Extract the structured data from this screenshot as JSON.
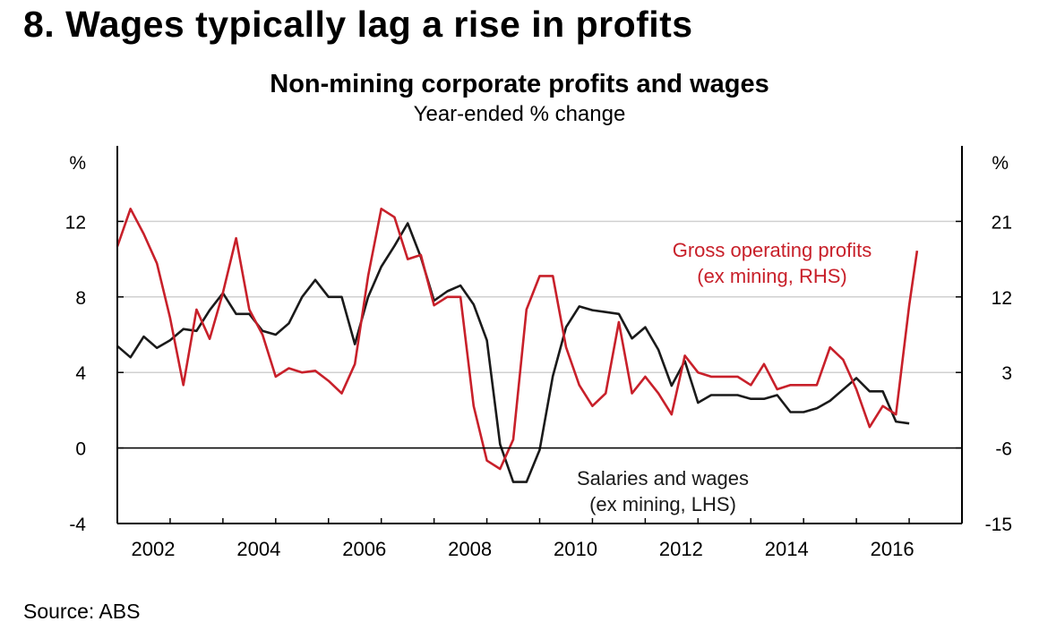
{
  "heading": "8. Wages typically lag a rise in profits",
  "source": "Source: ABS",
  "colors": {
    "wages": "#1a1a1a",
    "profits": "#c8202a",
    "grid": "#d0d0d0",
    "axis": "#000000"
  },
  "chart_data": {
    "type": "line",
    "title": "Non-mining corporate profits and wages",
    "subtitle": "Year-ended % change",
    "left_axis": {
      "unit": "%",
      "ylim": [
        -4,
        16
      ],
      "ticks": [
        -4,
        0,
        4,
        8,
        12
      ]
    },
    "right_axis": {
      "unit": "%",
      "ylim": [
        -15,
        30
      ],
      "ticks": [
        -15,
        -6,
        3,
        12,
        21
      ]
    },
    "x_axis": {
      "xlim": [
        2002,
        2018
      ],
      "ticks": [
        2002,
        2004,
        2006,
        2008,
        2010,
        2012,
        2014,
        2016
      ]
    },
    "grid": "horizontal",
    "series": [
      {
        "name": "Salaries and wages",
        "label_lines": [
          "Salaries and wages",
          "(ex mining, LHS)"
        ],
        "axis": "left",
        "x": [
          2002.0,
          2002.25,
          2002.5,
          2002.75,
          2003.0,
          2003.25,
          2003.5,
          2003.75,
          2004.0,
          2004.25,
          2004.5,
          2004.75,
          2005.0,
          2005.25,
          2005.5,
          2005.75,
          2006.0,
          2006.25,
          2006.5,
          2006.75,
          2007.0,
          2007.25,
          2007.5,
          2007.75,
          2008.0,
          2008.25,
          2008.5,
          2008.75,
          2009.0,
          2009.25,
          2009.5,
          2009.75,
          2010.0,
          2010.25,
          2010.5,
          2010.75,
          2011.0,
          2011.25,
          2011.5,
          2011.75,
          2012.0,
          2012.25,
          2012.5,
          2012.75,
          2013.0,
          2013.25,
          2013.5,
          2013.75,
          2014.0,
          2014.25,
          2014.5,
          2014.75,
          2015.0,
          2015.25,
          2015.5,
          2015.75,
          2016.0,
          2016.25,
          2016.5,
          2016.75,
          2017.0
        ],
        "values": [
          5.4,
          4.8,
          5.9,
          5.3,
          5.7,
          6.3,
          6.2,
          7.3,
          8.2,
          7.1,
          7.1,
          6.2,
          6.0,
          6.6,
          8.0,
          8.9,
          8.0,
          8.0,
          5.5,
          8.0,
          9.6,
          10.7,
          11.9,
          10.1,
          7.8,
          8.3,
          8.6,
          7.6,
          5.7,
          0.2,
          -1.8,
          -1.8,
          -0.1,
          3.8,
          6.4,
          7.5,
          7.3,
          7.2,
          7.1,
          5.8,
          6.4,
          5.2,
          3.3,
          4.6,
          2.4,
          2.8,
          2.8,
          2.8,
          2.6,
          2.6,
          2.8,
          1.9,
          1.9,
          2.1,
          2.5,
          3.1,
          3.7,
          3.0,
          3.0,
          1.4,
          1.3
        ]
      },
      {
        "name": "Gross operating profits",
        "label_lines": [
          "Gross operating profits",
          "(ex mining, RHS)"
        ],
        "axis": "right",
        "x": [
          2002.0,
          2002.25,
          2002.5,
          2002.75,
          2003.0,
          2003.25,
          2003.5,
          2003.75,
          2004.0,
          2004.25,
          2004.5,
          2004.75,
          2005.0,
          2005.25,
          2005.5,
          2005.75,
          2006.0,
          2006.25,
          2006.5,
          2006.75,
          2007.0,
          2007.25,
          2007.5,
          2007.75,
          2008.0,
          2008.25,
          2008.5,
          2008.75,
          2009.0,
          2009.25,
          2009.5,
          2009.75,
          2010.0,
          2010.25,
          2010.5,
          2010.75,
          2011.0,
          2011.25,
          2011.5,
          2011.75,
          2012.0,
          2012.25,
          2012.5,
          2012.75,
          2013.0,
          2013.25,
          2013.5,
          2013.75,
          2014.0,
          2014.25,
          2014.5,
          2014.75,
          2015.0,
          2015.25,
          2015.5,
          2015.75,
          2016.0,
          2016.25,
          2016.5,
          2016.75,
          2017.0,
          2017.15
        ],
        "values": [
          18.0,
          22.5,
          19.5,
          16.0,
          9.5,
          1.5,
          10.5,
          7.0,
          12.5,
          19.0,
          10.5,
          7.5,
          2.5,
          3.5,
          3.0,
          3.2,
          2.0,
          0.5,
          4.0,
          14.5,
          22.5,
          21.5,
          16.5,
          17.0,
          11.0,
          12.0,
          12.0,
          -1.0,
          -7.5,
          -8.5,
          -5.0,
          10.5,
          14.5,
          14.5,
          6.0,
          1.5,
          -1.0,
          0.5,
          9.0,
          0.5,
          2.5,
          0.5,
          -2.0,
          5.0,
          3.0,
          2.5,
          2.5,
          2.5,
          1.5,
          4.0,
          1.0,
          1.5,
          1.5,
          1.5,
          6.0,
          4.5,
          1.0,
          -3.5,
          -1.0,
          -2.0,
          11.0,
          17.5
        ]
      }
    ]
  }
}
